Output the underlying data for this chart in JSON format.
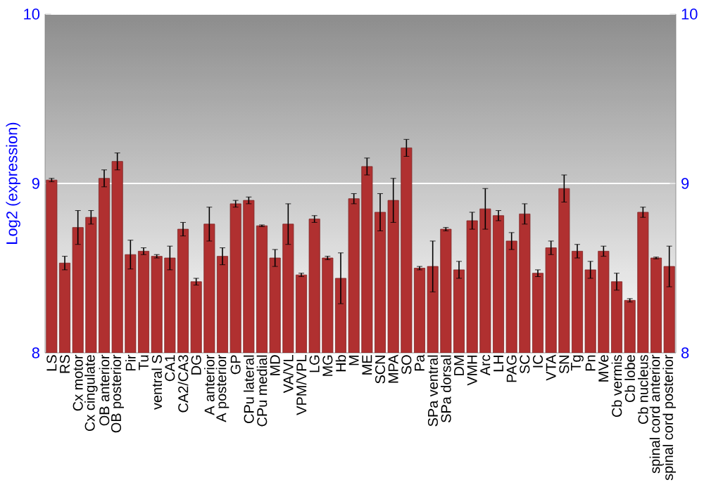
{
  "chart_data": {
    "type": "bar",
    "ylabel": "Log2 (expression)",
    "categories": [
      "LS",
      "RS",
      "Cx motor",
      "Cx cingulate",
      "OB anterior",
      "OB posterior",
      "Pir",
      "Tu",
      "ventral S",
      "CA1",
      "CA2/CA3",
      "DG",
      "A anterior",
      "A posterior",
      "GP",
      "CPu lateral",
      "CPu medial",
      "MD",
      "VA/VL",
      "VPM/VPL",
      "LG",
      "MG",
      "Hb",
      "M",
      "ME",
      "SCN",
      "MPA",
      "SO",
      "Pa",
      "SPa ventral",
      "SPa dorsal",
      "DM",
      "VMH",
      "Arc",
      "LH",
      "PAG",
      "SC",
      "IC",
      "VTA",
      "SN",
      "Tg",
      "Pn",
      "MVe",
      "Cb vermis",
      "Cb lobe",
      "Cb nucleus",
      "spinal cord anterior",
      "spinal cord posterior"
    ],
    "values": [
      9.02,
      8.53,
      8.74,
      8.8,
      9.03,
      9.13,
      8.58,
      8.6,
      8.57,
      8.56,
      8.73,
      8.42,
      8.76,
      8.57,
      8.88,
      8.9,
      8.75,
      8.56,
      8.76,
      8.46,
      8.79,
      8.56,
      8.44,
      8.91,
      9.1,
      8.83,
      8.9,
      9.21,
      8.5,
      8.51,
      8.73,
      8.49,
      8.78,
      8.85,
      8.81,
      8.66,
      8.82,
      8.47,
      8.62,
      8.97,
      8.6,
      8.49,
      8.6,
      8.42,
      8.31,
      8.83,
      8.56,
      8.51
    ],
    "errors": [
      0.01,
      0.04,
      0.1,
      0.04,
      0.05,
      0.05,
      0.085,
      0.02,
      0.01,
      0.07,
      0.04,
      0.02,
      0.1,
      0.05,
      0.02,
      0.02,
      0.005,
      0.05,
      0.12,
      0.01,
      0.02,
      0.01,
      0.15,
      0.03,
      0.05,
      0.11,
      0.13,
      0.05,
      0.01,
      0.15,
      0.01,
      0.05,
      0.05,
      0.12,
      0.03,
      0.05,
      0.06,
      0.02,
      0.04,
      0.08,
      0.04,
      0.05,
      0.03,
      0.05,
      0.01,
      0.03,
      0.005,
      0.12
    ],
    "color": "#b03030",
    "ylim": [
      8,
      10
    ],
    "yticks": [
      8,
      9,
      10
    ],
    "y2lim": [
      8,
      10
    ],
    "y2ticks": [
      8,
      9,
      10
    ],
    "grid": "y"
  }
}
